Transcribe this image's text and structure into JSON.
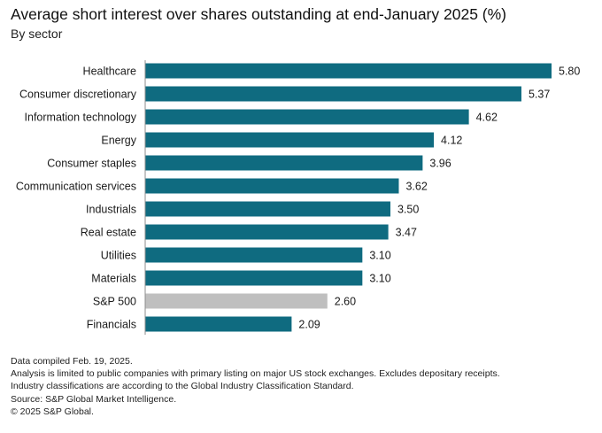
{
  "header": {
    "title": "Average short interest over shares outstanding at end-January 2025 (%)",
    "subtitle": "By sector"
  },
  "colors": {
    "sector_bar": "#0f6b80",
    "benchmark_bar": "#bfbfbf",
    "axis_line": "#8c8c8c",
    "label_text": "#1a1a1a"
  },
  "chart_data": {
    "type": "bar",
    "orientation": "horizontal",
    "title": "Average short interest over shares outstanding at end-January 2025 (%)",
    "subtitle": "By sector",
    "categories": [
      "Healthcare",
      "Consumer discretionary",
      "Information technology",
      "Energy",
      "Consumer staples",
      "Communication services",
      "Industrials",
      "Real estate",
      "Utilities",
      "Materials",
      "S&P 500",
      "Financials"
    ],
    "values": [
      5.8,
      5.37,
      4.62,
      4.12,
      3.96,
      3.62,
      3.5,
      3.47,
      3.1,
      3.1,
      2.6,
      2.09
    ],
    "value_labels": [
      "5.80",
      "5.37",
      "4.62",
      "4.12",
      "3.96",
      "3.62",
      "3.50",
      "3.47",
      "3.10",
      "3.10",
      "2.60",
      "2.09"
    ],
    "highlight_category": "S&P 500",
    "xlim": [
      0,
      5.8
    ],
    "grid": false,
    "legend": "none",
    "data_labels": "outside-end"
  },
  "footnotes": [
    "Data compiled Feb. 19, 2025.",
    "Analysis is limited to public companies with primary listing on major US stock exchanges. Excludes depositary receipts.",
    "Industry classifications are according to the Global Industry Classification Standard.",
    "Source: S&P Global Market Intelligence.",
    "© 2025 S&P Global."
  ]
}
